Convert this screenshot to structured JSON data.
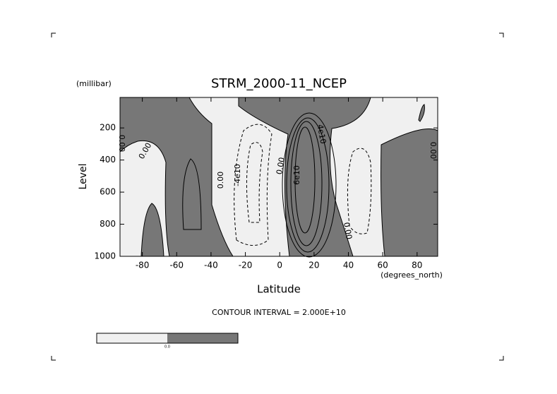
{
  "chart_data": {
    "type": "contour",
    "title": "STRM_2000-11_NCEP",
    "y_units": "(millibar)",
    "y_label": "Level",
    "x_label": "Latitude",
    "x_units": "(degrees_north)",
    "xlim": [
      -93,
      92
    ],
    "xticks": [
      -80,
      -60,
      -40,
      -20,
      0,
      20,
      40,
      60,
      80
    ],
    "ylim": [
      1000,
      10
    ],
    "yticks": [
      200,
      400,
      600,
      800,
      1000
    ],
    "contour_labels": [
      "0.00",
      "0.00",
      "0.00",
      "-4e10",
      "0.00",
      "6e10",
      "4e10",
      "0.00",
      "0.00"
    ],
    "contour_interval": "CONTOUR INTERVAL = 2.000E+10",
    "colorbar_labels": [
      "0.0"
    ]
  }
}
